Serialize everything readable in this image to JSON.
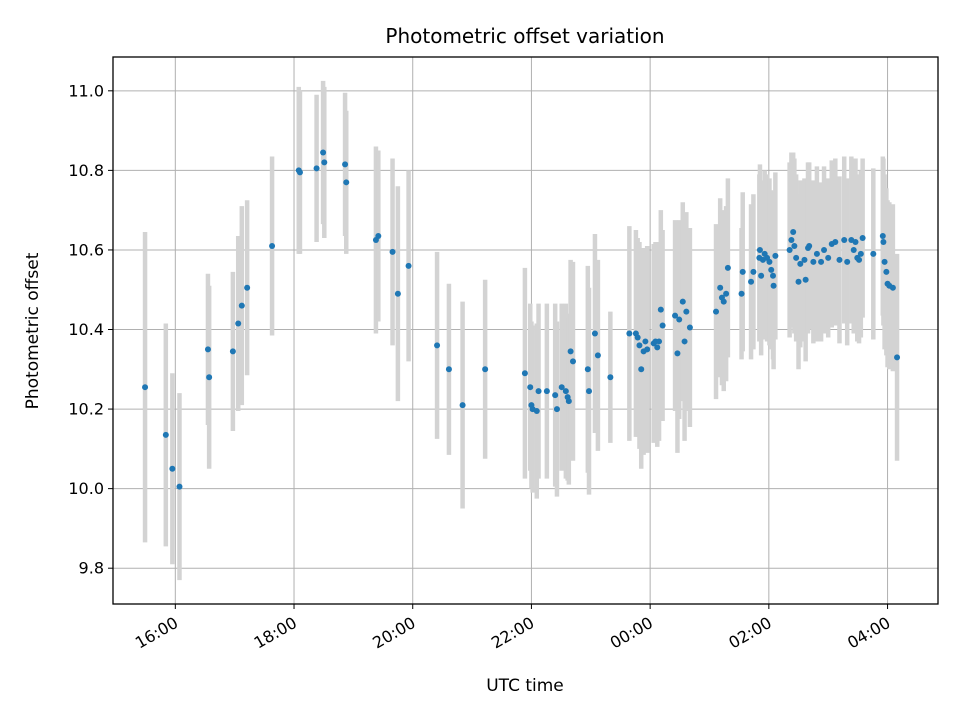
{
  "chart_data": {
    "type": "scatter",
    "title": "Photometric offset variation",
    "xlabel": "UTC time",
    "ylabel": "Photometric offset",
    "x_unit": "hours_since_prev_midnight",
    "x_ticks": [
      {
        "value": 16,
        "label": "16:00"
      },
      {
        "value": 18,
        "label": "18:00"
      },
      {
        "value": 20,
        "label": "20:00"
      },
      {
        "value": 22,
        "label": "22:00"
      },
      {
        "value": 24,
        "label": "00:00"
      },
      {
        "value": 26,
        "label": "02:00"
      },
      {
        "value": 28,
        "label": "04:00"
      }
    ],
    "y_ticks": [
      {
        "value": 9.8,
        "label": "9.8"
      },
      {
        "value": 10.0,
        "label": "10.0"
      },
      {
        "value": 10.2,
        "label": "10.2"
      },
      {
        "value": 10.4,
        "label": "10.4"
      },
      {
        "value": 10.6,
        "label": "10.6"
      },
      {
        "value": 10.8,
        "label": "10.8"
      },
      {
        "value": 11.0,
        "label": "11.0"
      }
    ],
    "xlim": [
      14.95,
      28.85
    ],
    "ylim": [
      9.71,
      11.085
    ],
    "grid": true,
    "point_color": "#1f77b4",
    "errorbar_color": "#d3d3d3",
    "points": [
      [
        15.49,
        10.255,
        0.39
      ],
      [
        15.84,
        10.135,
        0.28
      ],
      [
        15.95,
        10.05,
        0.24
      ],
      [
        16.07,
        10.005,
        0.235
      ],
      [
        16.55,
        10.35,
        0.19
      ],
      [
        16.57,
        10.28,
        0.23
      ],
      [
        16.97,
        10.345,
        0.2
      ],
      [
        17.06,
        10.415,
        0.22
      ],
      [
        17.12,
        10.46,
        0.25
      ],
      [
        17.21,
        10.505,
        0.22
      ],
      [
        17.63,
        10.61,
        0.225
      ],
      [
        18.08,
        10.8,
        0.21
      ],
      [
        18.1,
        10.795,
        0.205
      ],
      [
        18.38,
        10.805,
        0.185
      ],
      [
        18.49,
        10.845,
        0.18
      ],
      [
        18.51,
        10.82,
        0.19
      ],
      [
        18.86,
        10.815,
        0.18
      ],
      [
        18.88,
        10.77,
        0.18
      ],
      [
        19.38,
        10.625,
        0.235
      ],
      [
        19.42,
        10.635,
        0.215
      ],
      [
        19.66,
        10.595,
        0.235
      ],
      [
        19.75,
        10.49,
        0.27
      ],
      [
        19.93,
        10.56,
        0.24
      ],
      [
        20.41,
        10.36,
        0.235
      ],
      [
        20.61,
        10.3,
        0.215
      ],
      [
        20.84,
        10.21,
        0.26
      ],
      [
        21.22,
        10.3,
        0.225
      ],
      [
        21.89,
        10.29,
        0.265
      ],
      [
        21.98,
        10.255,
        0.21
      ],
      [
        22.0,
        10.21,
        0.21
      ],
      [
        22.02,
        10.2,
        0.21
      ],
      [
        22.09,
        10.195,
        0.22
      ],
      [
        22.12,
        10.245,
        0.22
      ],
      [
        22.26,
        10.245,
        0.22
      ],
      [
        22.4,
        10.235,
        0.23
      ],
      [
        22.43,
        10.2,
        0.22
      ],
      [
        22.51,
        10.255,
        0.21
      ],
      [
        22.58,
        10.245,
        0.22
      ],
      [
        22.61,
        10.23,
        0.21
      ],
      [
        22.63,
        10.22,
        0.21
      ],
      [
        22.66,
        10.345,
        0.23
      ],
      [
        22.7,
        10.32,
        0.25
      ],
      [
        22.95,
        10.3,
        0.26
      ],
      [
        22.97,
        10.245,
        0.26
      ],
      [
        23.07,
        10.39,
        0.25
      ],
      [
        23.12,
        10.335,
        0.24
      ],
      [
        23.33,
        10.28,
        0.165
      ],
      [
        23.65,
        10.39,
        0.27
      ],
      [
        23.76,
        10.39,
        0.26
      ],
      [
        23.79,
        10.38,
        0.25
      ],
      [
        23.82,
        10.36,
        0.26
      ],
      [
        23.85,
        10.3,
        0.25
      ],
      [
        23.89,
        10.345,
        0.26
      ],
      [
        23.92,
        10.37,
        0.22
      ],
      [
        23.95,
        10.35,
        0.26
      ],
      [
        24.06,
        10.365,
        0.25
      ],
      [
        24.09,
        10.37,
        0.25
      ],
      [
        24.12,
        10.355,
        0.25
      ],
      [
        24.15,
        10.37,
        0.25
      ],
      [
        24.18,
        10.45,
        0.25
      ],
      [
        24.21,
        10.41,
        0.24
      ],
      [
        24.42,
        10.435,
        0.24
      ],
      [
        24.46,
        10.34,
        0.25
      ],
      [
        24.49,
        10.425,
        0.25
      ],
      [
        24.55,
        10.47,
        0.25
      ],
      [
        24.58,
        10.37,
        0.25
      ],
      [
        24.61,
        10.445,
        0.25
      ],
      [
        24.67,
        10.405,
        0.25
      ],
      [
        25.11,
        10.445,
        0.22
      ],
      [
        25.18,
        10.505,
        0.225
      ],
      [
        25.21,
        10.48,
        0.22
      ],
      [
        25.24,
        10.47,
        0.225
      ],
      [
        25.28,
        10.49,
        0.22
      ],
      [
        25.31,
        10.555,
        0.225
      ],
      [
        25.54,
        10.49,
        0.165
      ],
      [
        25.56,
        10.545,
        0.2
      ],
      [
        25.7,
        10.52,
        0.195
      ],
      [
        25.74,
        10.545,
        0.195
      ],
      [
        25.84,
        10.58,
        0.21
      ],
      [
        25.85,
        10.6,
        0.215
      ],
      [
        25.87,
        10.535,
        0.2
      ],
      [
        25.9,
        10.575,
        0.2
      ],
      [
        25.93,
        10.59,
        0.21
      ],
      [
        25.97,
        10.58,
        0.21
      ],
      [
        26.01,
        10.57,
        0.21
      ],
      [
        26.04,
        10.55,
        0.2
      ],
      [
        26.07,
        10.535,
        0.21
      ],
      [
        26.08,
        10.51,
        0.21
      ],
      [
        26.11,
        10.585,
        0.21
      ],
      [
        26.35,
        10.6,
        0.22
      ],
      [
        26.38,
        10.625,
        0.22
      ],
      [
        26.41,
        10.645,
        0.2
      ],
      [
        26.43,
        10.61,
        0.22
      ],
      [
        26.46,
        10.58,
        0.21
      ],
      [
        26.5,
        10.52,
        0.22
      ],
      [
        26.53,
        10.565,
        0.21
      ],
      [
        26.6,
        10.575,
        0.205
      ],
      [
        26.62,
        10.525,
        0.205
      ],
      [
        26.66,
        10.605,
        0.215
      ],
      [
        26.68,
        10.61,
        0.21
      ],
      [
        26.75,
        10.57,
        0.205
      ],
      [
        26.81,
        10.59,
        0.22
      ],
      [
        26.88,
        10.57,
        0.2
      ],
      [
        26.93,
        10.6,
        0.21
      ],
      [
        27.0,
        10.58,
        0.2
      ],
      [
        27.06,
        10.615,
        0.21
      ],
      [
        27.12,
        10.62,
        0.21
      ],
      [
        27.19,
        10.575,
        0.21
      ],
      [
        27.27,
        10.625,
        0.21
      ],
      [
        27.32,
        10.57,
        0.21
      ],
      [
        27.39,
        10.625,
        0.21
      ],
      [
        27.43,
        10.6,
        0.21
      ],
      [
        27.46,
        10.62,
        0.21
      ],
      [
        27.49,
        10.58,
        0.21
      ],
      [
        27.52,
        10.575,
        0.21
      ],
      [
        27.55,
        10.59,
        0.21
      ],
      [
        27.58,
        10.63,
        0.2
      ],
      [
        27.76,
        10.59,
        0.215
      ],
      [
        27.92,
        10.635,
        0.2
      ],
      [
        27.93,
        10.62,
        0.21
      ],
      [
        27.95,
        10.57,
        0.22
      ],
      [
        27.98,
        10.545,
        0.21
      ],
      [
        28.0,
        10.515,
        0.21
      ],
      [
        28.03,
        10.51,
        0.21
      ],
      [
        28.09,
        10.505,
        0.21
      ],
      [
        28.16,
        10.33,
        0.26
      ]
    ]
  }
}
